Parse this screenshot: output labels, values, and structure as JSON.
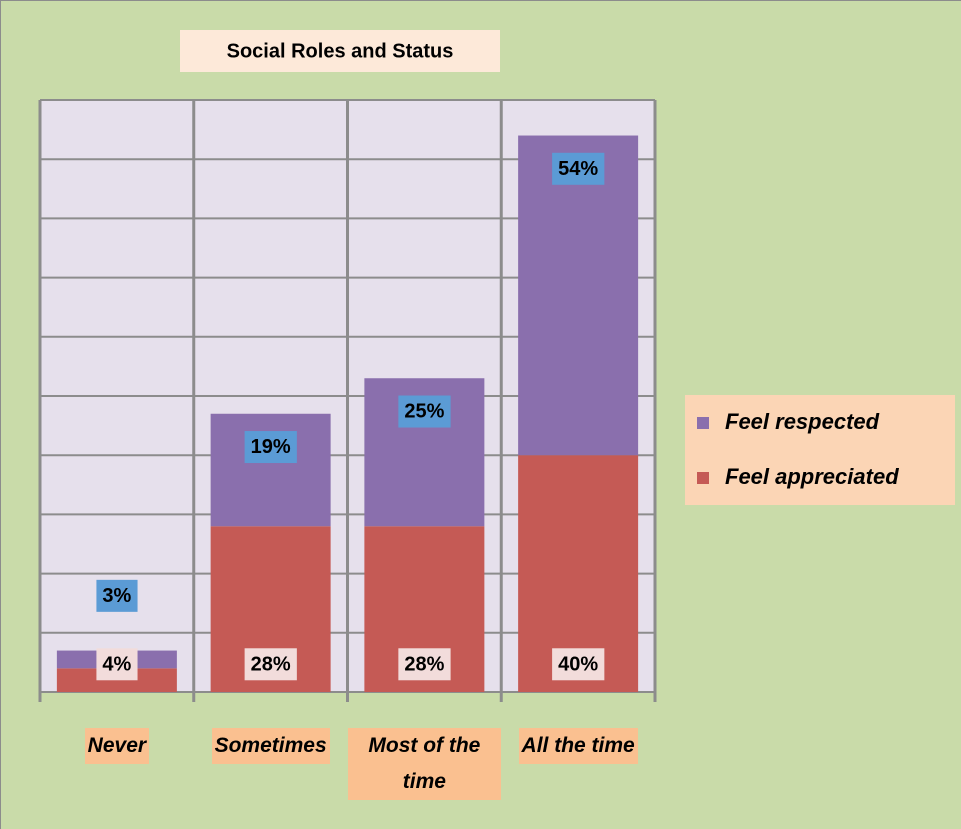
{
  "chart_data": {
    "type": "stacked_bar",
    "title": "Social Roles and Status",
    "categories": [
      "Never",
      "Sometimes",
      "Most of the time",
      "All the time"
    ],
    "series": [
      {
        "name": "Feel appreciated",
        "color": "#c55a55",
        "values": [
          4,
          28,
          28,
          40
        ],
        "value_labels": [
          "4%",
          "28%",
          "28%",
          "40%"
        ]
      },
      {
        "name": "Feel respected",
        "color": "#8a6fad",
        "values": [
          3,
          19,
          25,
          54
        ],
        "value_labels": [
          "3%",
          "19%",
          "25%",
          "54%"
        ]
      }
    ],
    "ylim": [
      0,
      100
    ],
    "yticks": [
      0,
      10,
      20,
      30,
      40,
      50,
      60,
      70,
      80,
      90,
      100
    ],
    "grid": true,
    "legend": "right"
  }
}
